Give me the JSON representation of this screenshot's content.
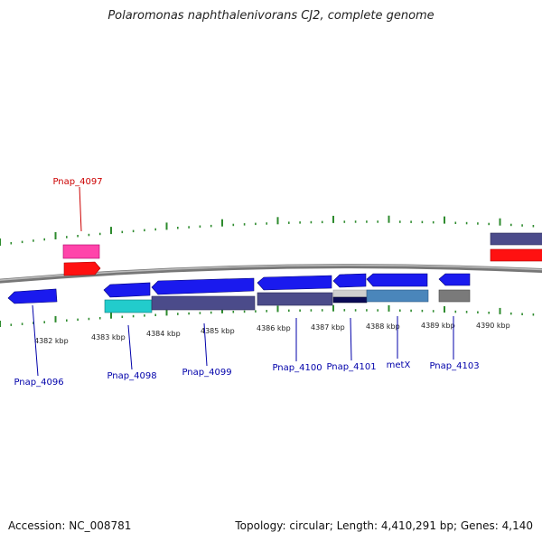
{
  "title": "Polaromonas naphthalenivorans CJ2, complete genome",
  "footer": {
    "accession": "Accession: NC_008781",
    "summary": "Topology: circular; Length: 4,410,291 bp; Genes: 4,140"
  },
  "colors": {
    "backbone": "#8a8a8a",
    "tick": "#2e8b2e",
    "highlight_label": "#cc0000",
    "gene_label": "#0000aa"
  },
  "kbp_labels": [
    "4382 kbp",
    "4383 kbp",
    "4384 kbp",
    "4385 kbp",
    "4386 kbp",
    "4387 kbp",
    "4388 kbp",
    "4389 kbp",
    "4390 kbp"
  ],
  "gene_labels": [
    {
      "text": "Pnap_4097",
      "color": "#cc0000"
    },
    {
      "text": "Pnap_4096",
      "color": "#0000aa"
    },
    {
      "text": "Pnap_4098",
      "color": "#0000aa"
    },
    {
      "text": "Pnap_4099",
      "color": "#0000aa"
    },
    {
      "text": "Pnap_4100",
      "color": "#0000aa"
    },
    {
      "text": "Pnap_4101",
      "color": "#0000aa"
    },
    {
      "text": "metX",
      "color": "#0000aa"
    },
    {
      "text": "Pnap_4103",
      "color": "#0000aa"
    }
  ]
}
